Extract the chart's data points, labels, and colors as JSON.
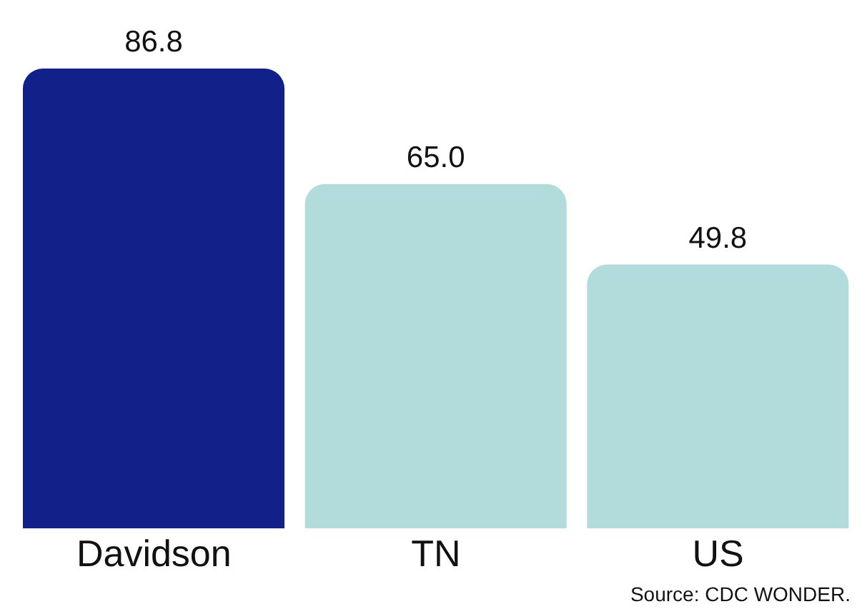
{
  "chart_data": {
    "type": "bar",
    "categories": [
      "Davidson",
      "TN",
      "US"
    ],
    "values": [
      86.8,
      65.0,
      49.8
    ],
    "colors": [
      "#12208a",
      "#b2dcdb",
      "#b2dcdb"
    ],
    "value_labels": [
      "86.8",
      "65.0",
      "49.8"
    ],
    "annotations": [
      "Source: CDC WONDER."
    ],
    "grid": false,
    "legend": false
  }
}
